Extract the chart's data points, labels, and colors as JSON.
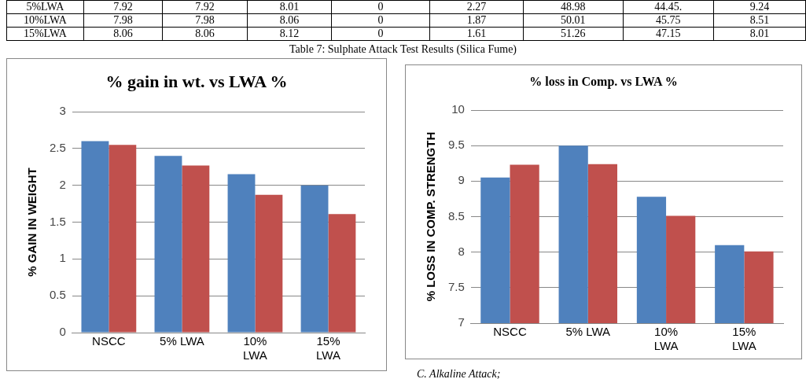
{
  "chart_data": [
    {
      "type": "other",
      "title": "Table 7: Sulphate Attack Test Results (Silica Fume)",
      "annotations": [
        "5%LWA",
        "7.92",
        "7.92",
        "8.01",
        "0",
        "2.27",
        "48.98",
        "44.45.",
        "9.24",
        "10%LWA",
        "7.98",
        "7.98",
        "8.06",
        "0",
        "1.87",
        "50.01",
        "45.75",
        "8.51",
        "15%LWA",
        "8.06",
        "8.06",
        "8.12",
        "0",
        "1.61",
        "51.26",
        "47.15",
        "8.01"
      ]
    },
    {
      "type": "bar",
      "title": "% gain in wt. vs LWA %",
      "ylabel": "% GAIN IN WEIGHT",
      "categories": [
        "NSCC",
        "5% LWA",
        "10% LWA",
        "15% LWA"
      ],
      "series": [
        {
          "color": "#4f81bd",
          "values": [
            2.6,
            2.4,
            2.15,
            2.0
          ]
        },
        {
          "color": "#c0504d",
          "values": [
            2.55,
            2.27,
            1.87,
            1.61
          ]
        }
      ],
      "ylim": [
        0,
        3
      ],
      "yticks": [
        0,
        0.5,
        1,
        1.5,
        2,
        2.5,
        3
      ],
      "grid": "y",
      "legend": false
    },
    {
      "type": "bar",
      "title": "% loss in Comp. vs LWA %",
      "ylabel": "% LOSS IN COMP. STRENGTH",
      "categories": [
        "NSCC",
        "5% LWA",
        "10% LWA",
        "15% LWA"
      ],
      "series": [
        {
          "color": "#4f81bd",
          "values": [
            9.05,
            9.5,
            8.78,
            8.1
          ]
        },
        {
          "color": "#c0504d",
          "values": [
            9.23,
            9.24,
            8.51,
            8.01
          ]
        }
      ],
      "ylim": [
        7,
        10
      ],
      "yticks": [
        7,
        7.5,
        8,
        8.5,
        9,
        9.5,
        10
      ],
      "grid": "y",
      "legend": false
    },
    {
      "type": "other",
      "title": "C.   Alkaline Attack;"
    }
  ]
}
